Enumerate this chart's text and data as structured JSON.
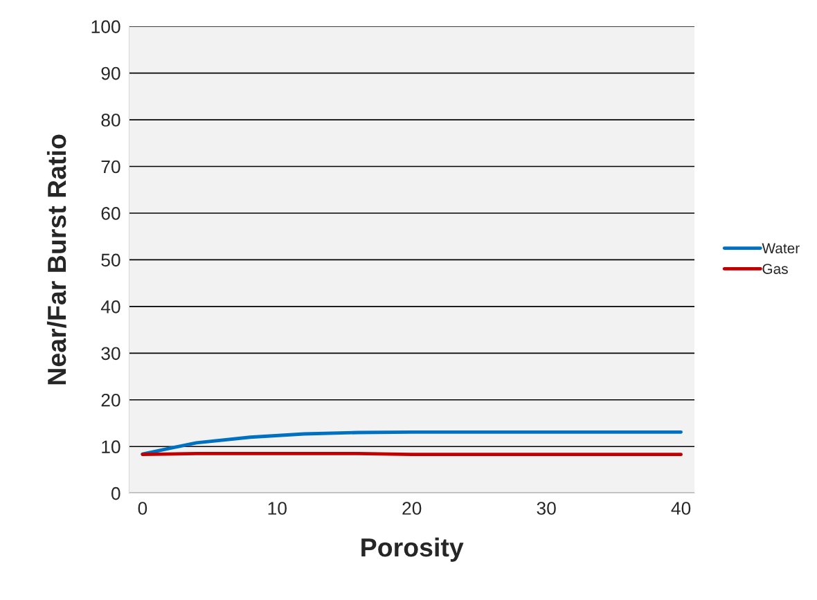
{
  "chart_data": {
    "type": "line",
    "xlabel": "Porosity",
    "ylabel": "Near/Far Burst Ratio",
    "x": [
      0,
      4,
      8,
      12,
      16,
      20,
      24,
      28,
      32,
      36,
      40
    ],
    "series": [
      {
        "name": "Water",
        "color": "#0070c0",
        "values": [
          8.4,
          10.8,
          12.0,
          12.7,
          13.0,
          13.1,
          13.1,
          13.1,
          13.1,
          13.1,
          13.1
        ]
      },
      {
        "name": "Gas",
        "color": "#c00000",
        "values": [
          8.3,
          8.5,
          8.5,
          8.5,
          8.5,
          8.3,
          8.3,
          8.3,
          8.3,
          8.3,
          8.3
        ]
      }
    ],
    "xlim": [
      -1,
      41
    ],
    "xticks": [
      0,
      10,
      20,
      30,
      40
    ],
    "ylim": [
      0,
      100
    ],
    "yticks": [
      0,
      10,
      20,
      30,
      40,
      50,
      60,
      70,
      80,
      90,
      100
    ],
    "grid": "y",
    "legend": "right",
    "marker": "none",
    "line_style": "solid"
  }
}
